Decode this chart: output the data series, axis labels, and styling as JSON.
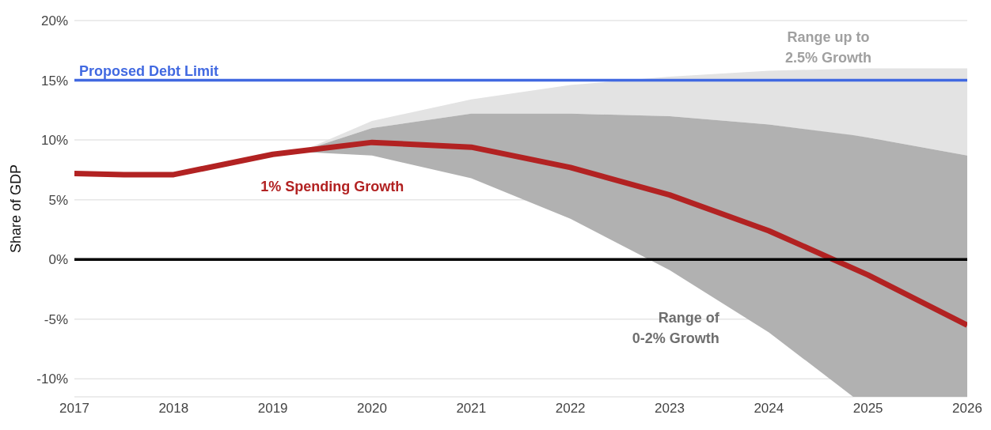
{
  "chart_data": {
    "type": "line",
    "ylabel": "Share of GDP",
    "xlim": [
      2017,
      2026
    ],
    "xticks": [
      2017,
      2018,
      2019,
      2020,
      2021,
      2022,
      2023,
      2024,
      2025,
      2026
    ],
    "ylim": [
      -11.5,
      20
    ],
    "yticks": [
      {
        "value": -10,
        "label": "-10%"
      },
      {
        "value": -5,
        "label": "-5%"
      },
      {
        "value": 0,
        "label": "0%"
      },
      {
        "value": 5,
        "label": "5%"
      },
      {
        "value": 10,
        "label": "10%"
      },
      {
        "value": 15,
        "label": "15%"
      },
      {
        "value": 20,
        "label": "20%"
      }
    ],
    "grid": "y",
    "legend": false,
    "series": [
      {
        "color": "#e3e3e3",
        "x": [
          2019.3,
          2020,
          2021,
          2022,
          2023,
          2024,
          2025,
          2026
        ],
        "values": [
          null,
          null,
          null,
          null,
          null,
          null,
          null,
          null
        ],
        "lower": [
          9.1,
          11.0,
          12.2,
          12.2,
          12.0,
          11.3,
          10.2,
          8.7
        ],
        "upper": [
          9.1,
          11.6,
          13.4,
          14.6,
          15.3,
          15.8,
          16.0,
          16.0
        ]
      },
      {
        "color": "#b1b1b1",
        "x": [
          2019.3,
          2020,
          2021,
          2022,
          2023,
          2024,
          2024.85,
          2025,
          2026
        ],
        "values": [
          null,
          null,
          null,
          null,
          null,
          null,
          null,
          null,
          null
        ],
        "lower": [
          9.0,
          8.7,
          6.8,
          3.4,
          -0.9,
          -6.1,
          -11.5,
          -11.5,
          -11.5
        ],
        "upper": [
          9.1,
          11.0,
          12.2,
          12.2,
          12.0,
          11.3,
          10.4,
          10.2,
          8.7
        ]
      },
      {
        "name": "1% Spending Growth",
        "color": "#b22222",
        "x": [
          2017,
          2017.5,
          2018,
          2019,
          2020,
          2021,
          2022,
          2023,
          2024,
          2025,
          2026
        ],
        "values": [
          7.2,
          7.1,
          7.1,
          8.8,
          9.8,
          9.4,
          7.7,
          5.4,
          2.4,
          -1.3,
          -5.5
        ]
      }
    ],
    "annotations": [
      "Range up to 2.5% Growth",
      "Range of 0-2% Growth"
    ],
    "ref_lines": [
      {
        "axis": "y",
        "value": 15,
        "label": "Proposed Debt Limit",
        "color": "#4169e1"
      },
      {
        "axis": "y",
        "value": 0,
        "color": "#000000"
      }
    ]
  }
}
